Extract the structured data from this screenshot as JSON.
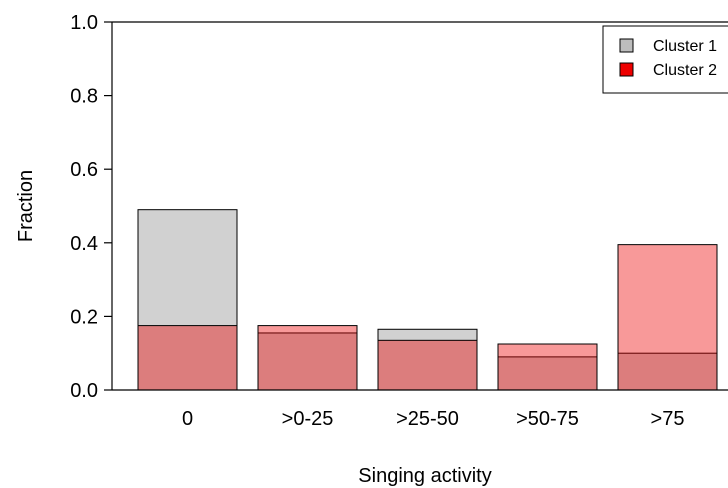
{
  "chart_data": {
    "type": "bar",
    "title": "",
    "xlabel": "Singing activity",
    "ylabel": "Fraction",
    "categories": [
      "0",
      ">0-25",
      ">25-50",
      ">50-75",
      ">75"
    ],
    "ylim": [
      0,
      1.0
    ],
    "yticks": [
      "0.0",
      "0.2",
      "0.4",
      "0.6",
      "0.8",
      "1.0"
    ],
    "series": [
      {
        "name": "Cluster 1",
        "values": [
          0.49,
          0.155,
          0.165,
          0.09,
          0.1
        ],
        "color": "#bdbdbd"
      },
      {
        "name": "Cluster 2",
        "values": [
          0.175,
          0.175,
          0.135,
          0.125,
          0.395
        ],
        "color": "#ee0000"
      }
    ],
    "overlay": true,
    "legend_position": "top-right",
    "grid": false
  }
}
